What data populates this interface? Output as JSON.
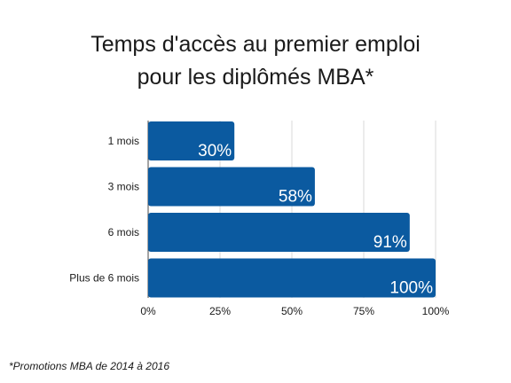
{
  "title_line1": "Temps d'accès au premier emploi",
  "title_line2": "pour les diplômés MBA*",
  "footnote": "*Promotions MBA de 2014 à 2016",
  "colors": {
    "bar": "#0b5aa0",
    "grid": "#d9d9d9",
    "axis": "#4a4a4a",
    "text": "#1a1a1a"
  },
  "chart_data": {
    "type": "bar",
    "orientation": "horizontal",
    "categories": [
      "1 mois",
      "3 mois",
      "6 mois",
      "Plus de 6 mois"
    ],
    "values": [
      30,
      58,
      91,
      100
    ],
    "data_labels": [
      "30%",
      "58%",
      "91%",
      "100%"
    ],
    "xlim": [
      0,
      100
    ],
    "x_ticks": [
      0,
      25,
      50,
      75,
      100
    ],
    "x_tick_labels": [
      "0%",
      "25%",
      "50%",
      "75%",
      "100%"
    ],
    "grid": true
  }
}
